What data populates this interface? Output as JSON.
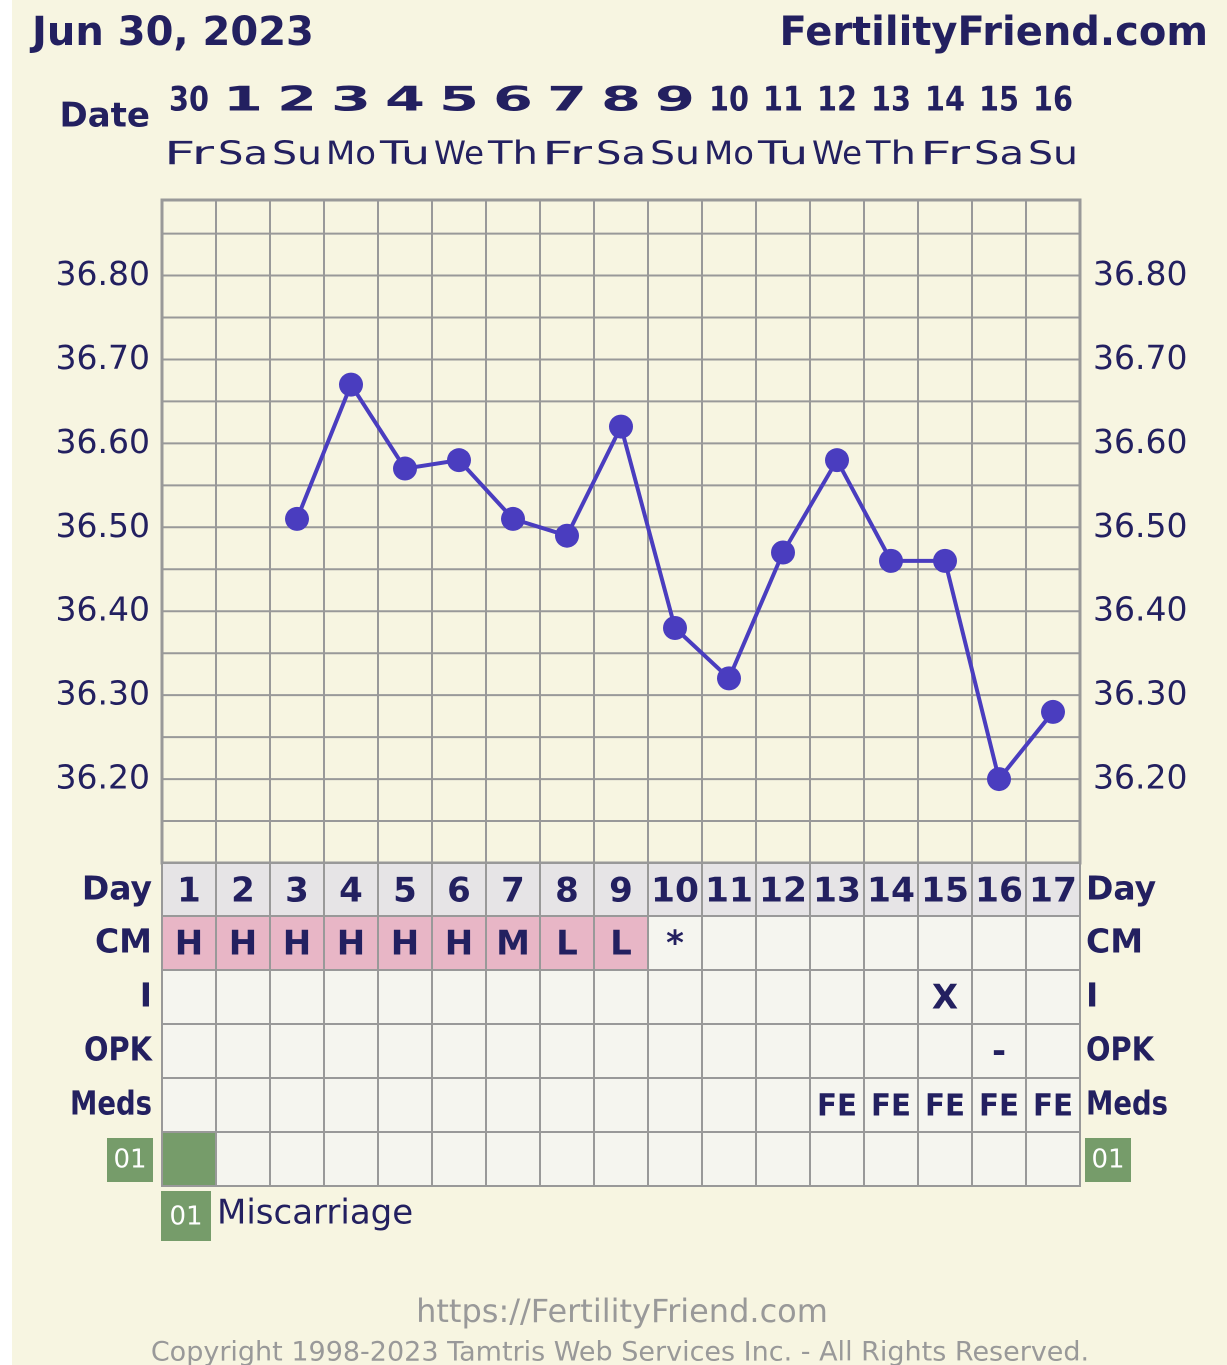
{
  "header": {
    "date": "Jun 30, 2023",
    "site": "FertilityFriend.com"
  },
  "chart_data": {
    "type": "line",
    "date_label": "Date",
    "dates": [
      30,
      1,
      2,
      3,
      4,
      5,
      6,
      7,
      8,
      9,
      10,
      11,
      12,
      13,
      14,
      15,
      16
    ],
    "weekdays": [
      "Fr",
      "Sa",
      "Su",
      "Mo",
      "Tu",
      "We",
      "Th",
      "Fr",
      "Sa",
      "Su",
      "Mo",
      "Tu",
      "We",
      "Th",
      "Fr",
      "Sa",
      "Su"
    ],
    "values": [
      null,
      null,
      36.51,
      36.67,
      36.57,
      36.58,
      36.51,
      36.49,
      36.62,
      36.38,
      36.32,
      36.47,
      36.58,
      36.46,
      36.46,
      36.2,
      36.28
    ],
    "color": "#4a3dbf",
    "ylim": [
      36.1,
      36.89
    ],
    "yticks": [
      {
        "value": 36.2,
        "label": "36.20"
      },
      {
        "value": 36.3,
        "label": "36.30"
      },
      {
        "value": 36.4,
        "label": "36.40"
      },
      {
        "value": 36.5,
        "label": "36.50"
      },
      {
        "value": 36.6,
        "label": "36.60"
      },
      {
        "value": 36.7,
        "label": "36.70"
      },
      {
        "value": 36.8,
        "label": "36.80"
      }
    ],
    "minor_yticks": [
      36.15,
      36.25,
      36.35,
      36.45,
      36.55,
      36.65,
      36.75,
      36.85
    ],
    "grid": true
  },
  "rows": {
    "day_label": "Day",
    "days": [
      1,
      2,
      3,
      4,
      5,
      6,
      7,
      8,
      9,
      10,
      11,
      12,
      13,
      14,
      15,
      16,
      17
    ],
    "cm_label": "CM",
    "cm": [
      "H",
      "H",
      "H",
      "H",
      "H",
      "H",
      "M",
      "L",
      "L",
      "*",
      null,
      null,
      null,
      null,
      null,
      null,
      null
    ],
    "i_label": "I",
    "i": [
      null,
      null,
      null,
      null,
      null,
      null,
      null,
      null,
      null,
      null,
      null,
      null,
      null,
      null,
      "X",
      null,
      null
    ],
    "opk_label": "OPK",
    "opk": [
      null,
      null,
      null,
      null,
      null,
      null,
      null,
      null,
      null,
      null,
      null,
      null,
      null,
      null,
      null,
      "-",
      null
    ],
    "meds_label": "Meds",
    "meds": [
      null,
      null,
      null,
      null,
      null,
      null,
      null,
      null,
      null,
      null,
      null,
      null,
      "FE",
      "FE",
      "FE",
      "FE",
      "FE"
    ],
    "event_code": "01",
    "event_day": 1
  },
  "legend": {
    "code": "01",
    "text": "Miscarriage"
  },
  "footer": {
    "url": "https://FertilityFriend.com",
    "copyright": "Copyright 1998-2023 Tamtris Web Services Inc. - All Rights Reserved."
  }
}
